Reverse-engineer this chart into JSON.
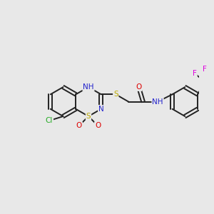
{
  "background_color": "#e8e8e8",
  "atom_colors": {
    "C": "#000000",
    "N": "#2222cc",
    "O": "#dd0000",
    "S": "#bbaa00",
    "Cl": "#22aa22",
    "F": "#dd00dd",
    "H": "#666688"
  },
  "bond_color": "#222222",
  "bond_width": 1.4,
  "font_size_atom": 7.5
}
